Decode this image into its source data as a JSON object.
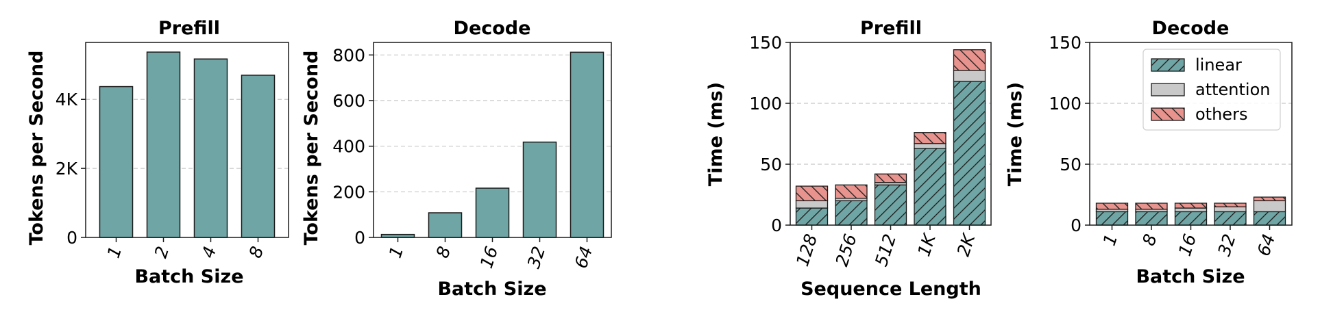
{
  "chart_data": [
    {
      "type": "bar",
      "title": "Prefill",
      "xlabel": "Batch Size",
      "ylabel": "Tokens per Second",
      "categories": [
        "1",
        "2",
        "4",
        "8"
      ],
      "values": [
        4370,
        5370,
        5170,
        4700
      ],
      "ylim": [
        0,
        5650
      ],
      "yticks": [
        0,
        2000,
        4000
      ],
      "ytick_labels": [
        "0",
        "2K",
        "4K"
      ],
      "grid": true,
      "color": "#6fa6a5"
    },
    {
      "type": "bar",
      "title": "Decode",
      "xlabel": "Batch Size",
      "ylabel": "Tokens per Second",
      "categories": [
        "1",
        "8",
        "16",
        "32",
        "64"
      ],
      "values": [
        13,
        108,
        216,
        418,
        812
      ],
      "ylim": [
        0,
        855
      ],
      "yticks": [
        0,
        200,
        400,
        600,
        800
      ],
      "ytick_labels": [
        "0",
        "200",
        "400",
        "600",
        "800"
      ],
      "grid": true,
      "color": "#6fa6a5"
    },
    {
      "type": "bar",
      "stacked": true,
      "title": "Prefill",
      "xlabel": "Sequence Length",
      "ylabel": "Time (ms)",
      "categories": [
        "128",
        "256",
        "512",
        "1K",
        "2K"
      ],
      "series": [
        {
          "name": "linear",
          "values": [
            14,
            20,
            33,
            63,
            118
          ],
          "color": "#6fa6a5",
          "hatch": "/"
        },
        {
          "name": "attention",
          "values": [
            6,
            2,
            2,
            4,
            9
          ],
          "color": "#c9c9c9",
          "hatch": "none"
        },
        {
          "name": "others",
          "values": [
            12,
            11,
            7,
            9,
            17
          ],
          "color": "#e8938d",
          "hatch": "\\"
        }
      ],
      "ylim": [
        0,
        150
      ],
      "yticks": [
        0,
        50,
        100,
        150
      ],
      "ytick_labels": [
        "0",
        "50",
        "100",
        "150"
      ],
      "grid": true
    },
    {
      "type": "bar",
      "stacked": true,
      "title": "Decode",
      "xlabel": "Batch Size",
      "ylabel": "Time (ms)",
      "categories": [
        "1",
        "8",
        "16",
        "32",
        "64"
      ],
      "series": [
        {
          "name": "linear",
          "values": [
            11,
            11,
            11,
            11,
            11
          ],
          "color": "#6fa6a5",
          "hatch": "/"
        },
        {
          "name": "attention",
          "values": [
            2,
            2,
            3,
            4,
            9
          ],
          "color": "#c9c9c9",
          "hatch": "none"
        },
        {
          "name": "others",
          "values": [
            5,
            5,
            4,
            3,
            3
          ],
          "color": "#e8938d",
          "hatch": "\\"
        }
      ],
      "ylim": [
        0,
        150
      ],
      "yticks": [
        0,
        50,
        100,
        150
      ],
      "ytick_labels": [
        "0",
        "50",
        "100",
        "150"
      ],
      "grid": true,
      "legend": {
        "position": "top-right",
        "entries": [
          "linear",
          "attention",
          "others"
        ]
      }
    }
  ]
}
